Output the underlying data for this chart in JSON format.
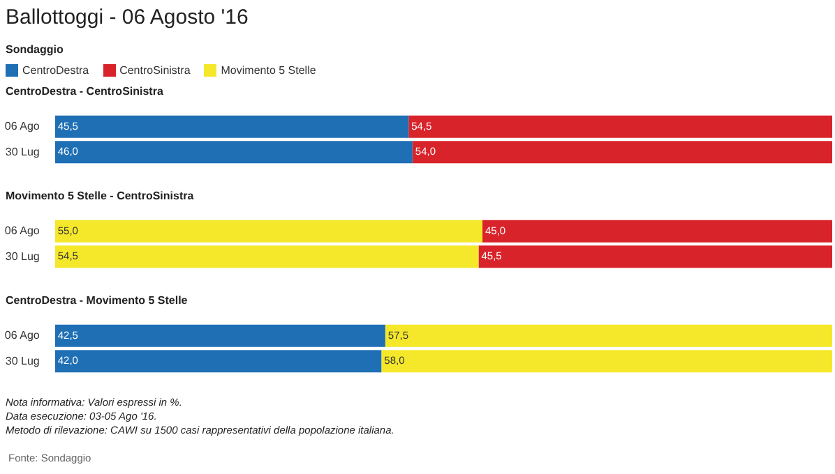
{
  "chart_data": [
    {
      "type": "bar",
      "title": "Ballottoggi - 06 Agosto '16",
      "subtitle": "Sondaggio",
      "legend": "top left",
      "orientation": "horizontal",
      "stacked": true,
      "tick_labels": "y",
      "grid": false,
      "categories": [
        "06 Ago",
        "30 Lug"
      ],
      "annotations": [
        "CentroDestra - CentroSinistra"
      ],
      "series": [
        {
          "name": "CentroDestra",
          "color": "#1f6fb5",
          "values": [
            45.5,
            46.0
          ],
          "value_labels": [
            "45,5",
            "46,0"
          ]
        },
        {
          "name": "CentroSinistra",
          "color": "#d9232a",
          "values": [
            54.5,
            54.0
          ],
          "value_labels": [
            "54,5",
            "54,0"
          ]
        }
      ]
    },
    {
      "type": "bar",
      "orientation": "horizontal",
      "stacked": true,
      "tick_labels": "y",
      "grid": false,
      "categories": [
        "06 Ago",
        "30 Lug"
      ],
      "annotations": [
        "Movimento 5 Stelle - CentroSinistra"
      ],
      "series": [
        {
          "name": "Movimento 5 Stelle",
          "color": "#f5e82a",
          "values": [
            55.0,
            54.5
          ],
          "value_labels": [
            "55,0",
            "54,5"
          ]
        },
        {
          "name": "CentroSinistra",
          "color": "#d9232a",
          "values": [
            45.0,
            45.5
          ],
          "value_labels": [
            "45,0",
            "45,5"
          ]
        }
      ]
    },
    {
      "type": "bar",
      "orientation": "horizontal",
      "stacked": true,
      "tick_labels": "y",
      "grid": false,
      "categories": [
        "06 Ago",
        "30 Lug"
      ],
      "annotations": [
        "CentroDestra - Movimento 5 Stelle",
        "Nota informativa: Valori espressi in %.",
        "Data esecuzione: 03-05 Ago '16.",
        "Metodo di rilevazione: CAWI su 1500 casi rappresentativi della popolazione italiana.",
        "Fonte: Sondaggio"
      ],
      "series": [
        {
          "name": "CentroDestra",
          "color": "#1f6fb5",
          "values": [
            42.5,
            42.0
          ],
          "value_labels": [
            "42,5",
            "42,0"
          ]
        },
        {
          "name": "Movimento 5 Stelle",
          "color": "#f5e82a",
          "values": [
            57.5,
            58.0
          ],
          "value_labels": [
            "57,5",
            "58,0"
          ]
        }
      ]
    }
  ]
}
